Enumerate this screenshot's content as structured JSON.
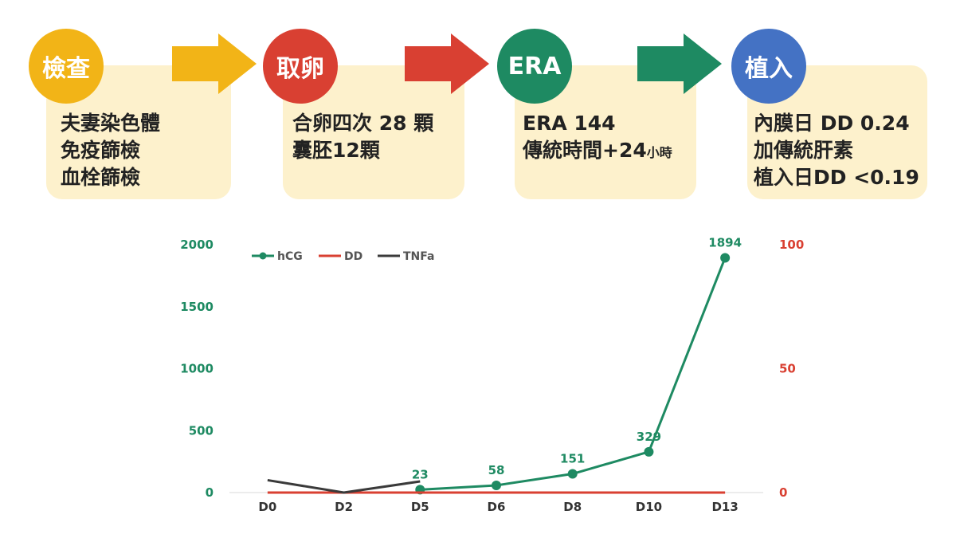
{
  "steps": [
    {
      "title": "檢查",
      "color": "#f2b417",
      "lines": [
        "夫妻染色體",
        "免疫篩檢",
        "血栓篩檢"
      ]
    },
    {
      "title": "取卵",
      "color": "#d94032",
      "lines": [
        "合卵四次 28 顆",
        "囊胚12顆"
      ]
    },
    {
      "title": "ERA",
      "color": "#1e8a62",
      "lines": [
        "ERA 144",
        "傳統時間+24"
      ],
      "line_suffix": "小時"
    },
    {
      "title": "植入",
      "color": "#4472c4",
      "lines": [
        "內膜日 DD 0.24",
        "加傳統肝素",
        "植入日DD <0.19"
      ]
    }
  ],
  "arrow_icons": [
    "yellow-arrow-icon",
    "red-arrow-icon",
    "green-arrow-icon"
  ],
  "chart_data": {
    "type": "line",
    "categories": [
      "D0",
      "D2",
      "D5",
      "D6",
      "D8",
      "D10",
      "D13"
    ],
    "y_left": {
      "ticks": [
        "0",
        "500",
        "1000",
        "1500",
        "2000"
      ],
      "range": [
        0,
        2000
      ],
      "color": "#1e8a62"
    },
    "y_right": {
      "ticks": [
        "0",
        "50",
        "100"
      ],
      "range": [
        0,
        100
      ],
      "color": "#d94032"
    },
    "legend": {
      "placement": "top-left"
    },
    "series": [
      {
        "name": "hCG",
        "axis": "left",
        "color": "#1e8a62",
        "markers": true,
        "points": [
          {
            "x": "D5",
            "y": 23
          },
          {
            "x": "D6",
            "y": 58
          },
          {
            "x": "D8",
            "y": 151
          },
          {
            "x": "D10",
            "y": 329
          },
          {
            "x": "D13",
            "y": 1894
          }
        ],
        "labels": [
          "23",
          "58",
          "151",
          "329",
          "1894"
        ]
      },
      {
        "name": "DD",
        "axis": "right",
        "color": "#d94032",
        "markers": false,
        "points": [
          {
            "x": "D0",
            "y": 0
          },
          {
            "x": "D2",
            "y": 0
          },
          {
            "x": "D5",
            "y": 0
          },
          {
            "x": "D6",
            "y": 0
          },
          {
            "x": "D8",
            "y": 0
          },
          {
            "x": "D10",
            "y": 0
          },
          {
            "x": "D13",
            "y": 0
          }
        ]
      },
      {
        "name": "TNFa",
        "axis": "right",
        "color": "#3a3a3a",
        "markers": false,
        "points": [
          {
            "x": "D0",
            "y": 5
          },
          {
            "x": "D2",
            "y": 0
          },
          {
            "x": "D5",
            "y": 4.5
          }
        ]
      }
    ]
  }
}
